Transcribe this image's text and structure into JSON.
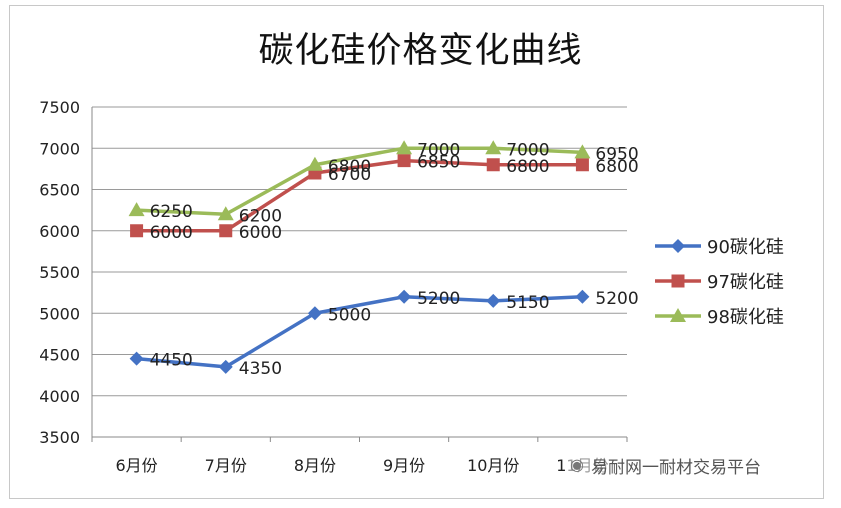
{
  "chart_data": {
    "type": "line",
    "title": "碳化硅价格变化曲线",
    "xlabel": "",
    "ylabel": "",
    "categories": [
      "6月份",
      "7月份",
      "8月份",
      "9月份",
      "10月份",
      "11月份"
    ],
    "ylim": [
      3500,
      7500
    ],
    "yticks": [
      3500,
      4000,
      4500,
      5000,
      5500,
      6000,
      6500,
      7000,
      7500
    ],
    "grid": true,
    "legend_position": "right",
    "series": [
      {
        "name": "90碳化硅",
        "values": [
          4450,
          4350,
          5000,
          5200,
          5150,
          5200
        ],
        "color": "#4472c4",
        "marker": "diamond"
      },
      {
        "name": "97碳化硅",
        "values": [
          6000,
          6000,
          6700,
          6850,
          6800,
          6800
        ],
        "color": "#c0504d",
        "marker": "square"
      },
      {
        "name": "98碳化硅",
        "values": [
          6250,
          6200,
          6800,
          7000,
          7000,
          6950
        ],
        "color": "#9bbb59",
        "marker": "triangle"
      }
    ]
  },
  "watermark": {
    "icon": "wechat-icon",
    "text": "易耐网一耐材交易平台"
  }
}
